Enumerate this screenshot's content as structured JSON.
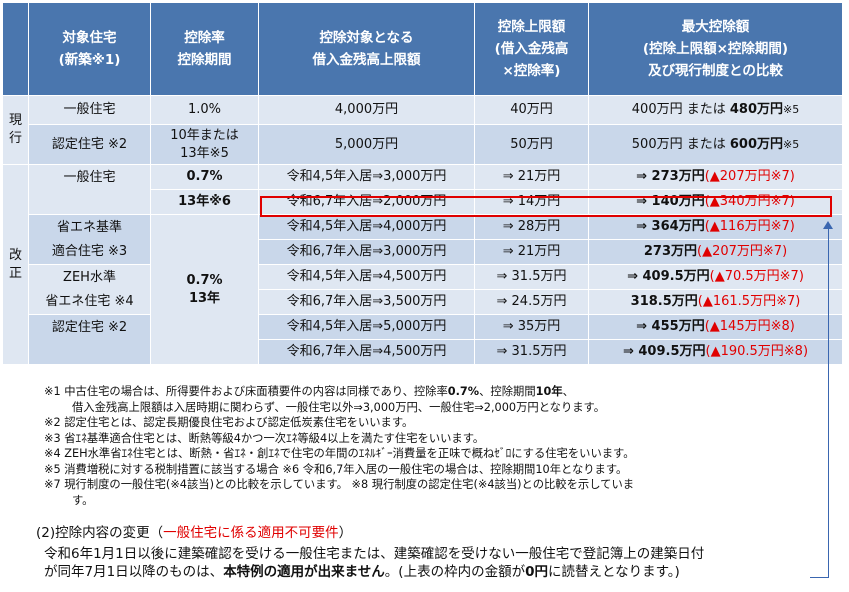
{
  "header": {
    "col1": "対象住宅\n(新築※1)",
    "col2": "控除率\n控除期間",
    "col3": "控除対象となる\n借入金残高上限額",
    "col4": "控除上限額\n(借入金残高\n×控除率)",
    "col5": "最大控除額\n(控除上限額×控除期間)\n及び現行制度との比較"
  },
  "current": {
    "side": "現\n行",
    "rows": [
      {
        "type": "一般住宅",
        "rate": "1.0%",
        "limit": "4,000万円",
        "cap": "40万円",
        "max_plain": "400万円 または ",
        "max_bold": "480万円",
        "max_note": "※5"
      },
      {
        "type": "認定住宅 ※2",
        "rate": "10年または\n13年※5",
        "limit": "5,000万円",
        "cap": "50万円",
        "max_plain": "500万円 または ",
        "max_bold": "600万円",
        "max_note": "※5"
      }
    ]
  },
  "revised": {
    "side": "改\n正",
    "rate_general": "0.7%",
    "period_general": "13年※6",
    "rate_other": "0.7%",
    "period_other": "13年",
    "groups": [
      {
        "type": "一般住宅",
        "rows": [
          {
            "limit": "令和4,5年入居⇒3,000万円",
            "cap": "⇒ 21万円",
            "max_bold": "⇒ 273万円",
            "diff": "▲207万円※7"
          },
          {
            "limit": "令和6,7年入居⇒2,000万円",
            "cap": "⇒ 14万円",
            "max_bold": "⇒ 140万円",
            "diff": "▲340万円※7"
          }
        ]
      },
      {
        "type": "省エネ基準\n適合住宅 ※3",
        "rows": [
          {
            "limit": "令和4,5年入居⇒4,000万円",
            "cap": "⇒ 28万円",
            "max_bold": "⇒ 364万円",
            "diff": "▲116万円※7"
          },
          {
            "limit": "令和6,7年入居⇒3,000万円",
            "cap": "⇒ 21万円",
            "max_bold": "273万円",
            "diff": "▲207万円※7"
          }
        ]
      },
      {
        "type": "ZEH水準\n省エネ住宅 ※4",
        "rows": [
          {
            "limit": "令和4,5年入居⇒4,500万円",
            "cap": "⇒ 31.5万円",
            "max_bold": "⇒ 409.5万円",
            "diff": "▲70.5万円※7"
          },
          {
            "limit": "令和6,7年入居⇒3,500万円",
            "cap": "⇒ 24.5万円",
            "max_bold": "318.5万円",
            "diff": "▲161.5万円※7"
          }
        ]
      },
      {
        "type": "認定住宅 ※2",
        "rows": [
          {
            "limit": "令和4,5年入居⇒5,000万円",
            "cap": "⇒ 35万円",
            "max_bold": "⇒ 455万円",
            "diff": "▲145万円※8"
          },
          {
            "limit": "令和6,7年入居⇒4,500万円",
            "cap": "⇒ 31.5万円",
            "max_bold": "⇒ 409.5万円",
            "diff": "▲190.5万円※8"
          }
        ]
      }
    ]
  },
  "notes": {
    "n1a_pre": "※1 中古住宅の場合は、所得要件および床面積要件の内容は同様であり、控除率",
    "n1a_b1": "0.7%",
    "n1a_mid": "、控除期間",
    "n1a_b2": "10年",
    "n1a_post": "、",
    "n1b": "借入金残高上限額は入居時期に関わらず、一般住宅以外⇒3,000万円、一般住宅⇒2,000万円となります。",
    "n2": "※2 認定住宅とは、認定長期優良住宅および認定低炭素住宅をいいます。",
    "n3": "※3 省ｴﾈ基準適合住宅とは、断熱等級4かつ一次ｴﾈ等級4以上を満たす住宅をいいます。",
    "n4": "※4 ZEH水準省ｴﾈ住宅とは、断熱・省ｴﾈ・創ｴﾈで住宅の年間のｴﾈﾙｷﾞｰ消費量を正味で概ねｾﾞﾛにする住宅をいいます。",
    "n5": "※5 消費増税に対する税制措置に該当する場合 ※6 令和6,7年入居の一般住宅の場合は、控除期間10年となります。",
    "n7": "※7 現行制度の一般住宅(※4該当)との比較を示しています。 ※8 現行制度の認定住宅(※4該当)との比較を示していま",
    "n7b": "す。"
  },
  "section": {
    "title": "(2)控除内容の変更（",
    "title_red": "一般住宅に係る適用不可要件",
    "title_end": "）"
  },
  "paragraph": {
    "p1": "令和6年1月1日以後に建築確認を受ける一般住宅または、建築確認を受けない一般住宅で登記簿上の建築日付",
    "p2_a": "が同年7月1日以降のものは、",
    "p2_b": "本特例の適用が出来ません",
    "p2_c": "。(上表の枠内の金額が",
    "p2_d": "0円",
    "p2_e": "に読替えとなります。)"
  },
  "colors": {
    "header_bg": "#4a76ae",
    "row_light": "#dfe7f2",
    "row_dark": "#c9d7ea",
    "accent_red": "#e00000",
    "connector": "#3a66b0"
  }
}
